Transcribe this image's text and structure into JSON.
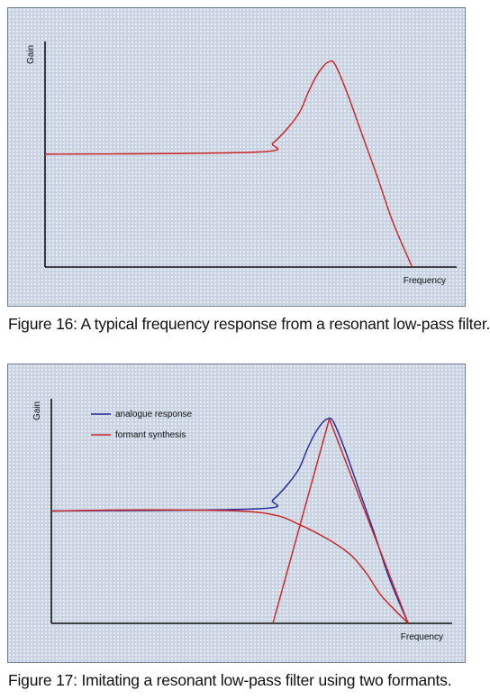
{
  "chart_data": [
    {
      "type": "line",
      "ylabel": "Gain",
      "xlabel": "Frequency",
      "ylim": [
        0,
        100
      ],
      "xlim": [
        0,
        100
      ],
      "grid": false,
      "colors": {
        "red": "#cc2222",
        "blue": "#22279a"
      },
      "series": [
        {
          "color": "red",
          "x": [
            0,
            55,
            59,
            63,
            66,
            68,
            70,
            72,
            73.5,
            75,
            78,
            82,
            86,
            90,
            95
          ],
          "y": [
            50,
            51,
            55,
            62,
            69,
            77,
            84,
            89,
            91,
            90,
            78,
            59,
            40,
            20,
            0
          ]
        }
      ]
    },
    {
      "type": "line",
      "ylabel": "Gain",
      "xlabel": "Frequency",
      "ylim": [
        0,
        100
      ],
      "xlim": [
        0,
        100
      ],
      "grid": false,
      "colors": {
        "red": "#cc2222",
        "blue": "#22279a"
      },
      "series": [
        {
          "name": "analogue response",
          "color": "blue",
          "x": [
            0,
            55,
            59,
            63,
            66,
            68,
            70,
            72,
            73.5,
            75,
            78,
            82,
            86,
            90,
            95
          ],
          "y": [
            50,
            51,
            55,
            62,
            69,
            77,
            84,
            89,
            91,
            90,
            78,
            59,
            40,
            20,
            0
          ]
        },
        {
          "name": "formant synthesis",
          "color": "red",
          "x": [
            0,
            25,
            50,
            60,
            66,
            72,
            76,
            80,
            84,
            88,
            95
          ],
          "y": [
            50,
            50.5,
            50,
            48,
            44,
            39,
            35,
            30,
            22,
            12,
            0
          ]
        },
        {
          "color": "red",
          "x": [
            59,
            74,
            95
          ],
          "y": [
            0,
            91,
            0
          ]
        }
      ]
    }
  ],
  "captions": [
    "Figure 16: A typical frequency response from a resonant low-pass filter.",
    "Figure 17: Imitating a resonant low-pass filter using two formants."
  ]
}
